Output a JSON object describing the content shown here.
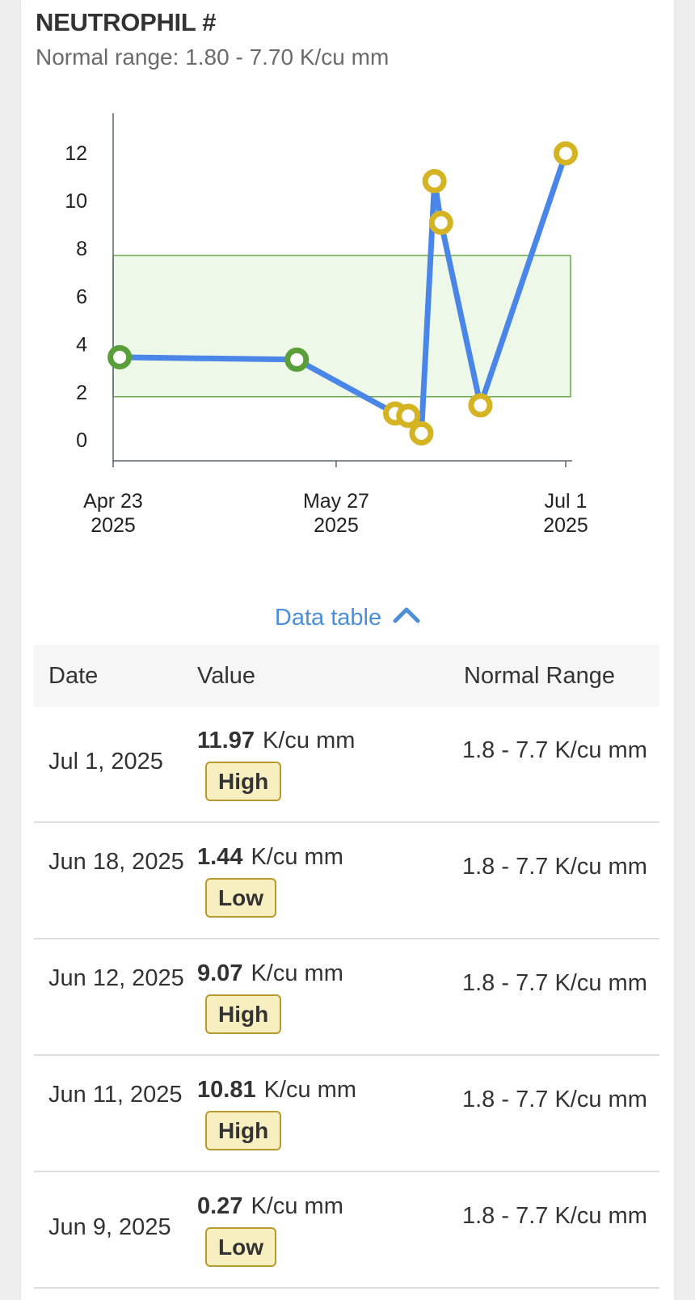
{
  "panel": {
    "title": "NEUTROPHIL #",
    "subtitle": "Normal range: 1.80 - 7.70 K/cu mm"
  },
  "chart_data": {
    "type": "line",
    "y_ticks": [
      "0",
      "2",
      "4",
      "6",
      "8",
      "10",
      "12"
    ],
    "x_ticks": [
      {
        "date": "2025-04-23",
        "line1": "Apr 23",
        "line2": "2025"
      },
      {
        "date": "2025-05-27",
        "line1": "May 27",
        "line2": "2025"
      },
      {
        "date": "2025-07-01",
        "line1": "Jul 1",
        "line2": "2025"
      }
    ],
    "ylim": [
      0,
      12.5
    ],
    "normal_range": [
      1.8,
      7.7
    ],
    "points": [
      {
        "x": "2025-04-24",
        "y": 3.45,
        "status": "normal"
      },
      {
        "x": "2025-05-21",
        "y": 3.35,
        "status": "normal"
      },
      {
        "x": "2025-06-05",
        "y": 1.1,
        "status": "abnormal"
      },
      {
        "x": "2025-06-07",
        "y": 1.0,
        "status": "abnormal"
      },
      {
        "x": "2025-06-09",
        "y": 0.27,
        "status": "abnormal"
      },
      {
        "x": "2025-06-11",
        "y": 10.81,
        "status": "abnormal"
      },
      {
        "x": "2025-06-12",
        "y": 9.07,
        "status": "abnormal"
      },
      {
        "x": "2025-06-18",
        "y": 1.44,
        "status": "abnormal"
      },
      {
        "x": "2025-07-01",
        "y": 11.97,
        "status": "abnormal"
      }
    ],
    "colors": {
      "line": "#4a86e8",
      "normal_point": "#5a9e3a",
      "abnormal_point": "#d4b422",
      "range_fill": "#edf8e8",
      "range_stroke": "#6aa84f"
    }
  },
  "toggle": {
    "label": "Data table",
    "icon": "chevron-up-icon"
  },
  "table": {
    "headers": {
      "date": "Date",
      "value": "Value",
      "range": "Normal Range"
    },
    "rows": [
      {
        "date": "Jul 1, 2025",
        "value": "11.97",
        "unit": "K/cu mm",
        "flag": "High",
        "range": "1.8 - 7.7 K/cu mm"
      },
      {
        "date": "Jun 18, 2025",
        "value": "1.44",
        "unit": "K/cu mm",
        "flag": "Low",
        "range": "1.8 - 7.7 K/cu mm"
      },
      {
        "date": "Jun 12, 2025",
        "value": "9.07",
        "unit": "K/cu mm",
        "flag": "High",
        "range": "1.8 - 7.7 K/cu mm"
      },
      {
        "date": "Jun 11, 2025",
        "value": "10.81",
        "unit": "K/cu mm",
        "flag": "High",
        "range": "1.8 - 7.7 K/cu mm"
      },
      {
        "date": "Jun 9, 2025",
        "value": "0.27",
        "unit": "K/cu mm",
        "flag": "Low",
        "range": "1.8 - 7.7 K/cu mm"
      }
    ]
  }
}
